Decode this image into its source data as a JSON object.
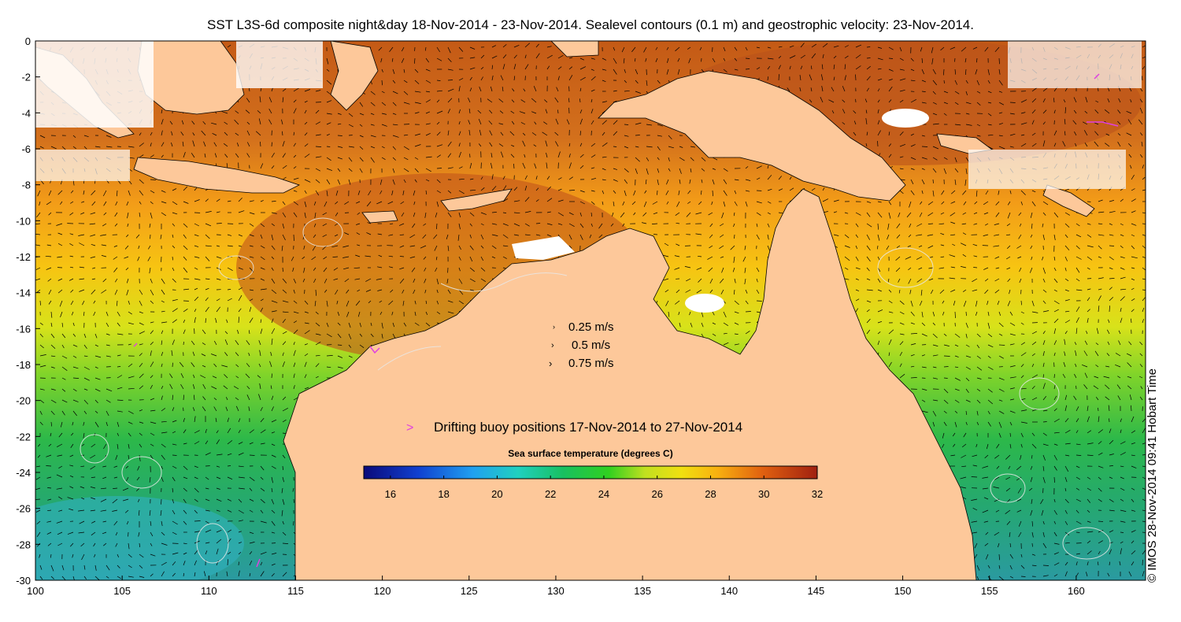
{
  "title": "SST L3S-6d composite night&day 18-Nov-2014 - 23-Nov-2014. Sealevel contours (0.1 m) and geostrophic velocity: 23-Nov-2014.",
  "credit": "© IMOS 28-Nov-2014 09:41 Hobart Time",
  "axes": {
    "x_ticks": [
      100,
      105,
      110,
      115,
      120,
      125,
      130,
      135,
      140,
      145,
      150,
      155,
      160
    ],
    "y_ticks": [
      0,
      -2,
      -4,
      -6,
      -8,
      -10,
      -12,
      -14,
      -16,
      -18,
      -20,
      -22,
      -24,
      -26,
      -28,
      -30
    ],
    "lon_range": [
      100,
      164
    ],
    "lat_range": [
      -30,
      0
    ]
  },
  "velocity_legend": [
    {
      "label": "0.25 m/s"
    },
    {
      "label": "0.5 m/s"
    },
    {
      "label": "0.75 m/s"
    }
  ],
  "buoy_legend": {
    "label": "Drifting buoy positions 17-Nov-2014 to 27-Nov-2014",
    "color": "#e040e0"
  },
  "colorbar": {
    "title": "Sea surface temperature (degrees C)",
    "ticks": [
      "16",
      "18",
      "20",
      "22",
      "24",
      "26",
      "28",
      "30",
      "32"
    ],
    "range": [
      15,
      32
    ]
  },
  "colors": {
    "land": "#fdc89a",
    "cloud": "#ffffff",
    "arrow": "#000000",
    "contour": "#e8e8e8"
  }
}
